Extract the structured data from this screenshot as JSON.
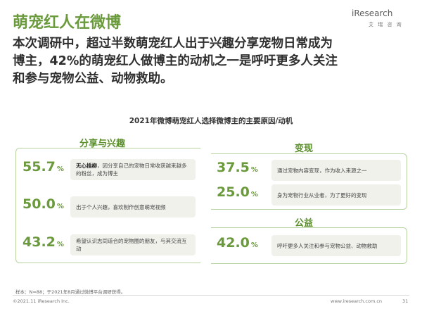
{
  "header": {
    "title": "萌宠红人在微博",
    "logo_text": "iResearch",
    "logo_sub": "艾 瑞 咨 询"
  },
  "lead": {
    "lines": [
      "本次调研中，超过半数萌宠红人出于兴趣分享宠物日常成为",
      "博主，42%的萌宠红人做博主的动机之一是呼吁更多人关注",
      "和参与宠物公益、动物救助。"
    ]
  },
  "chart_data": {
    "type": "table",
    "title": "2021年微博萌宠红人选择微博主的主要原因/动机",
    "groups": [
      {
        "name": "分享与兴趣",
        "items": [
          {
            "value": 55.7,
            "unit": "%",
            "bold": "无心插柳",
            "text": "，因分享自己的宠物日常收获越来越多的粉丝，成为博主"
          },
          {
            "value": 50.0,
            "unit": "%",
            "bold": "",
            "text": "出于个人兴趣，喜欢制作创意萌宠视频"
          },
          {
            "value": 43.2,
            "unit": "%",
            "bold": "",
            "text": "希望认识志同道合的宠物圈的朋友，与其交流互动"
          }
        ]
      },
      {
        "name": "变现",
        "items": [
          {
            "value": 37.5,
            "unit": "%",
            "bold": "",
            "text": "通过宠物内容变现，作为收入来源之一"
          },
          {
            "value": 25.0,
            "unit": "%",
            "bold": "",
            "text": "身为宠物行业从业者，为了更好的变现"
          }
        ]
      },
      {
        "name": "公益",
        "items": [
          {
            "value": 42.0,
            "unit": "%",
            "bold": "",
            "text": "呼吁更多人关注和参与宠物公益、动物救助"
          }
        ]
      }
    ]
  },
  "display": {
    "g0": [
      "55.7",
      "50.0",
      "43.2"
    ],
    "g1": [
      "37.5",
      "25.0"
    ],
    "g2": [
      "42.0"
    ],
    "pct": "%"
  },
  "footer": {
    "note": "样本：N=88；于2021年8月通过微博平台调研获得。",
    "copyright": "©2021.11 iResearch Inc.",
    "url": "www.iresearch.com.cn",
    "page": "31"
  }
}
